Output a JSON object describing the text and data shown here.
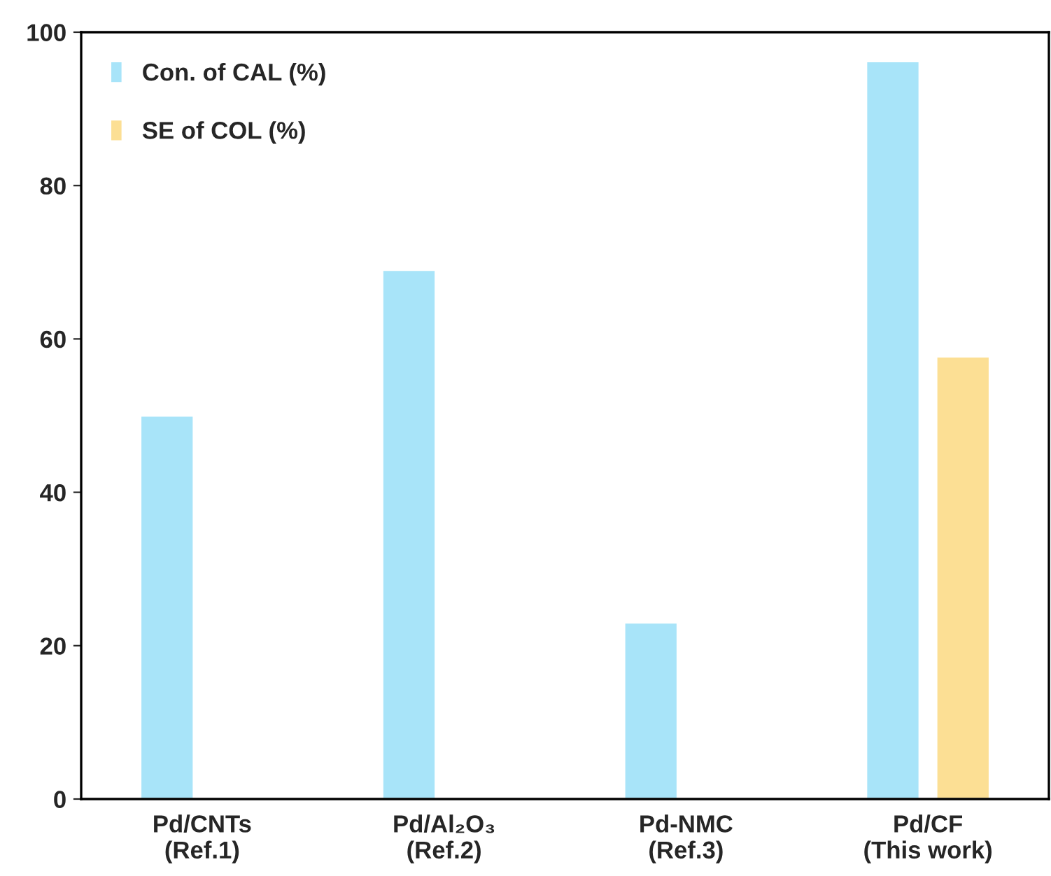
{
  "chart_data": {
    "type": "bar",
    "categories": [
      "Pd/CNTs\n(Ref.1)",
      "Pd/Al₂O₃\n(Ref.2)",
      "Pd-NMC\n(Ref.3)",
      "Pd/CF\n(This work)"
    ],
    "series": [
      {
        "name": "Con. of CAL (%)",
        "color": "#a8e4f9",
        "values": [
          50,
          69,
          23,
          96.2
        ]
      },
      {
        "name": "SE of COL (%)",
        "color": "#fcdf94",
        "values": [
          null,
          null,
          null,
          57.7
        ]
      }
    ],
    "ylim": [
      0,
      100
    ],
    "yticks": [
      0,
      20,
      40,
      60,
      80,
      100
    ],
    "grid": false,
    "legend": "top left"
  }
}
